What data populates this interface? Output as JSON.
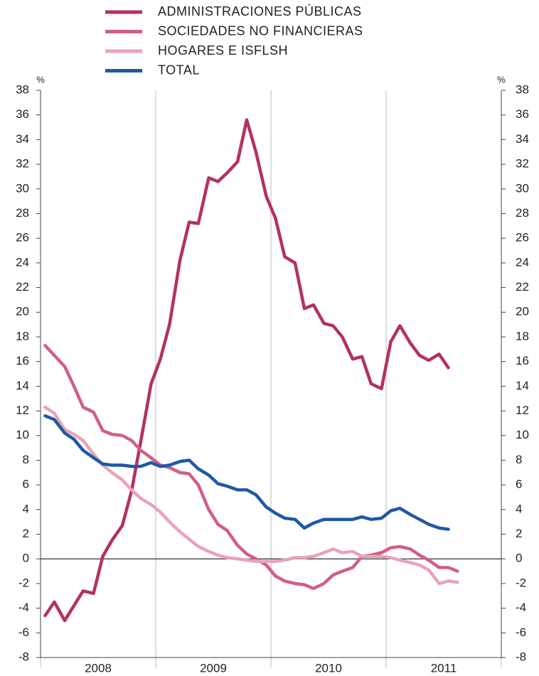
{
  "chart_data": {
    "type": "line",
    "ylabel": "%",
    "y2label": "%",
    "ylim": [
      -8,
      38
    ],
    "yticks": [
      -8,
      -6,
      -4,
      -2,
      0,
      2,
      4,
      6,
      8,
      10,
      12,
      14,
      16,
      18,
      20,
      22,
      24,
      26,
      28,
      30,
      32,
      34,
      36,
      38
    ],
    "y2lim": [
      -8,
      38
    ],
    "y2ticks": [
      -8,
      -6,
      -4,
      -2,
      0,
      2,
      4,
      6,
      8,
      10,
      12,
      14,
      16,
      18,
      20,
      22,
      24,
      26,
      28,
      30,
      32,
      34,
      36,
      38
    ],
    "xlim": [
      2008,
      2012
    ],
    "xticks": [
      {
        "value": 2008.5,
        "label": "2008"
      },
      {
        "value": 2009.5,
        "label": "2009"
      },
      {
        "value": 2010.5,
        "label": "2010"
      },
      {
        "value": 2011.5,
        "label": "2011"
      }
    ],
    "xgrid": [
      2008,
      2009,
      2010,
      2011,
      2012
    ],
    "x": [
      2008.04,
      2008.12,
      2008.21,
      2008.29,
      2008.37,
      2008.46,
      2008.54,
      2008.62,
      2008.71,
      2008.79,
      2008.87,
      2008.96,
      2009.04,
      2009.12,
      2009.21,
      2009.29,
      2009.37,
      2009.46,
      2009.54,
      2009.62,
      2009.71,
      2009.79,
      2009.87,
      2009.96,
      2010.04,
      2010.12,
      2010.21,
      2010.29,
      2010.37,
      2010.46,
      2010.54,
      2010.62,
      2010.71,
      2010.79,
      2010.87,
      2010.96,
      2011.04,
      2011.12,
      2011.21,
      2011.29,
      2011.37,
      2011.46,
      2011.54,
      2011.62
    ],
    "series": [
      {
        "name": "ADMINISTRACIONES PÚBLICAS",
        "color": "#b3325f",
        "values": [
          -4.6,
          -3.5,
          -5.0,
          -3.8,
          -2.6,
          -2.8,
          0.2,
          1.5,
          2.7,
          5.5,
          9.5,
          14.2,
          16.2,
          19.0,
          24.2,
          27.3,
          27.2,
          30.9,
          30.6,
          31.3,
          32.2,
          35.6,
          33.0,
          29.4,
          27.6,
          24.5,
          24.0,
          20.3,
          20.6,
          19.1,
          18.9,
          18.0,
          16.2,
          16.4,
          14.2,
          13.8,
          17.6,
          18.9,
          17.5,
          16.5,
          16.1,
          16.6,
          15.5,
          null
        ]
      },
      {
        "name": "SOCIEDADES NO FINANCIERAS",
        "color": "#d0607f",
        "values": [
          17.3,
          16.5,
          15.6,
          14.0,
          12.3,
          11.9,
          10.4,
          10.1,
          10.0,
          9.6,
          8.8,
          8.2,
          7.6,
          7.4,
          7.0,
          6.9,
          6.0,
          4.0,
          2.8,
          2.3,
          1.1,
          0.4,
          0.0,
          -0.5,
          -1.4,
          -1.8,
          -2.0,
          -2.1,
          -2.4,
          -2.0,
          -1.3,
          -1.0,
          -0.7,
          0.2,
          0.3,
          0.5,
          0.9,
          1.0,
          0.8,
          0.3,
          -0.1,
          -0.7,
          -0.7,
          -1.0
        ]
      },
      {
        "name": "HOGARES E ISFLSH",
        "color": "#e9a3b6",
        "values": [
          12.3,
          11.8,
          10.5,
          10.1,
          9.6,
          8.5,
          7.6,
          7.0,
          6.4,
          5.6,
          4.9,
          4.4,
          3.8,
          3.0,
          2.2,
          1.6,
          1.0,
          0.6,
          0.3,
          0.1,
          0.0,
          -0.1,
          -0.2,
          -0.2,
          -0.2,
          -0.1,
          0.1,
          0.1,
          0.2,
          0.5,
          0.8,
          0.5,
          0.6,
          0.2,
          0.2,
          0.2,
          0.1,
          -0.1,
          -0.3,
          -0.5,
          -0.9,
          -2.0,
          -1.8,
          -1.9
        ]
      },
      {
        "name": "TOTAL",
        "color": "#1f59a5",
        "values": [
          11.6,
          11.3,
          10.2,
          9.7,
          8.8,
          8.2,
          7.7,
          7.6,
          7.6,
          7.5,
          7.5,
          7.8,
          7.5,
          7.6,
          7.9,
          8.0,
          7.3,
          6.8,
          6.1,
          5.9,
          5.6,
          5.6,
          5.2,
          4.2,
          3.7,
          3.3,
          3.2,
          2.5,
          2.9,
          3.2,
          3.2,
          3.2,
          3.2,
          3.4,
          3.2,
          3.3,
          3.9,
          4.1,
          3.6,
          3.2,
          2.8,
          2.5,
          2.4,
          null
        ]
      }
    ]
  }
}
